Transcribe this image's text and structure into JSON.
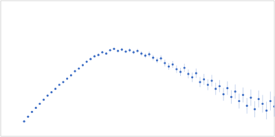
{
  "chart_data": {
    "type": "scatter",
    "color": "#3b6cc4",
    "marker": "circle",
    "grid": true,
    "tick_labels": false,
    "xlim": [
      0,
      0.35
    ],
    "xticks": [
      0.1
    ],
    "ylim": [
      0,
      2
    ],
    "yticks": [
      1
    ],
    "x": [
      0.03,
      0.035,
      0.04,
      0.045,
      0.05,
      0.055,
      0.06,
      0.065,
      0.07,
      0.075,
      0.08,
      0.085,
      0.09,
      0.095,
      0.1,
      0.105,
      0.11,
      0.115,
      0.12,
      0.125,
      0.13,
      0.135,
      0.14,
      0.145,
      0.15,
      0.155,
      0.16,
      0.165,
      0.17,
      0.175,
      0.18,
      0.185,
      0.19,
      0.195,
      0.2,
      0.205,
      0.21,
      0.215,
      0.22,
      0.225,
      0.23,
      0.235,
      0.24,
      0.245,
      0.25,
      0.255,
      0.26,
      0.265,
      0.27,
      0.275,
      0.28,
      0.285,
      0.29,
      0.295,
      0.3,
      0.305,
      0.31,
      0.315,
      0.32,
      0.325,
      0.33,
      0.335,
      0.34,
      0.345,
      0.35
    ],
    "values": [
      0.22,
      0.29,
      0.36,
      0.42,
      0.48,
      0.54,
      0.6,
      0.65,
      0.7,
      0.76,
      0.8,
      0.85,
      0.9,
      0.96,
      1.0,
      1.05,
      1.1,
      1.14,
      1.18,
      1.2,
      1.24,
      1.22,
      1.27,
      1.29,
      1.26,
      1.28,
      1.25,
      1.27,
      1.24,
      1.26,
      1.22,
      1.19,
      1.21,
      1.16,
      1.12,
      1.15,
      1.08,
      1.03,
      1.06,
      0.99,
      0.95,
      1.01,
      0.92,
      0.87,
      0.93,
      0.8,
      0.84,
      0.76,
      0.82,
      0.7,
      0.74,
      0.62,
      0.71,
      0.58,
      0.66,
      0.52,
      0.61,
      0.45,
      0.57,
      0.4,
      0.55,
      0.48,
      0.38,
      0.52,
      0.44
    ],
    "errors": [
      0.01,
      0.01,
      0.01,
      0.01,
      0.01,
      0.01,
      0.01,
      0.01,
      0.01,
      0.01,
      0.01,
      0.01,
      0.01,
      0.01,
      0.01,
      0.015,
      0.015,
      0.015,
      0.015,
      0.02,
      0.02,
      0.02,
      0.02,
      0.02,
      0.025,
      0.025,
      0.025,
      0.03,
      0.03,
      0.03,
      0.035,
      0.035,
      0.04,
      0.04,
      0.04,
      0.045,
      0.05,
      0.05,
      0.05,
      0.055,
      0.06,
      0.06,
      0.065,
      0.07,
      0.07,
      0.075,
      0.08,
      0.08,
      0.085,
      0.09,
      0.09,
      0.095,
      0.1,
      0.1,
      0.105,
      0.11,
      0.11,
      0.115,
      0.12,
      0.12,
      0.125,
      0.13,
      0.13,
      0.14,
      0.15
    ]
  }
}
